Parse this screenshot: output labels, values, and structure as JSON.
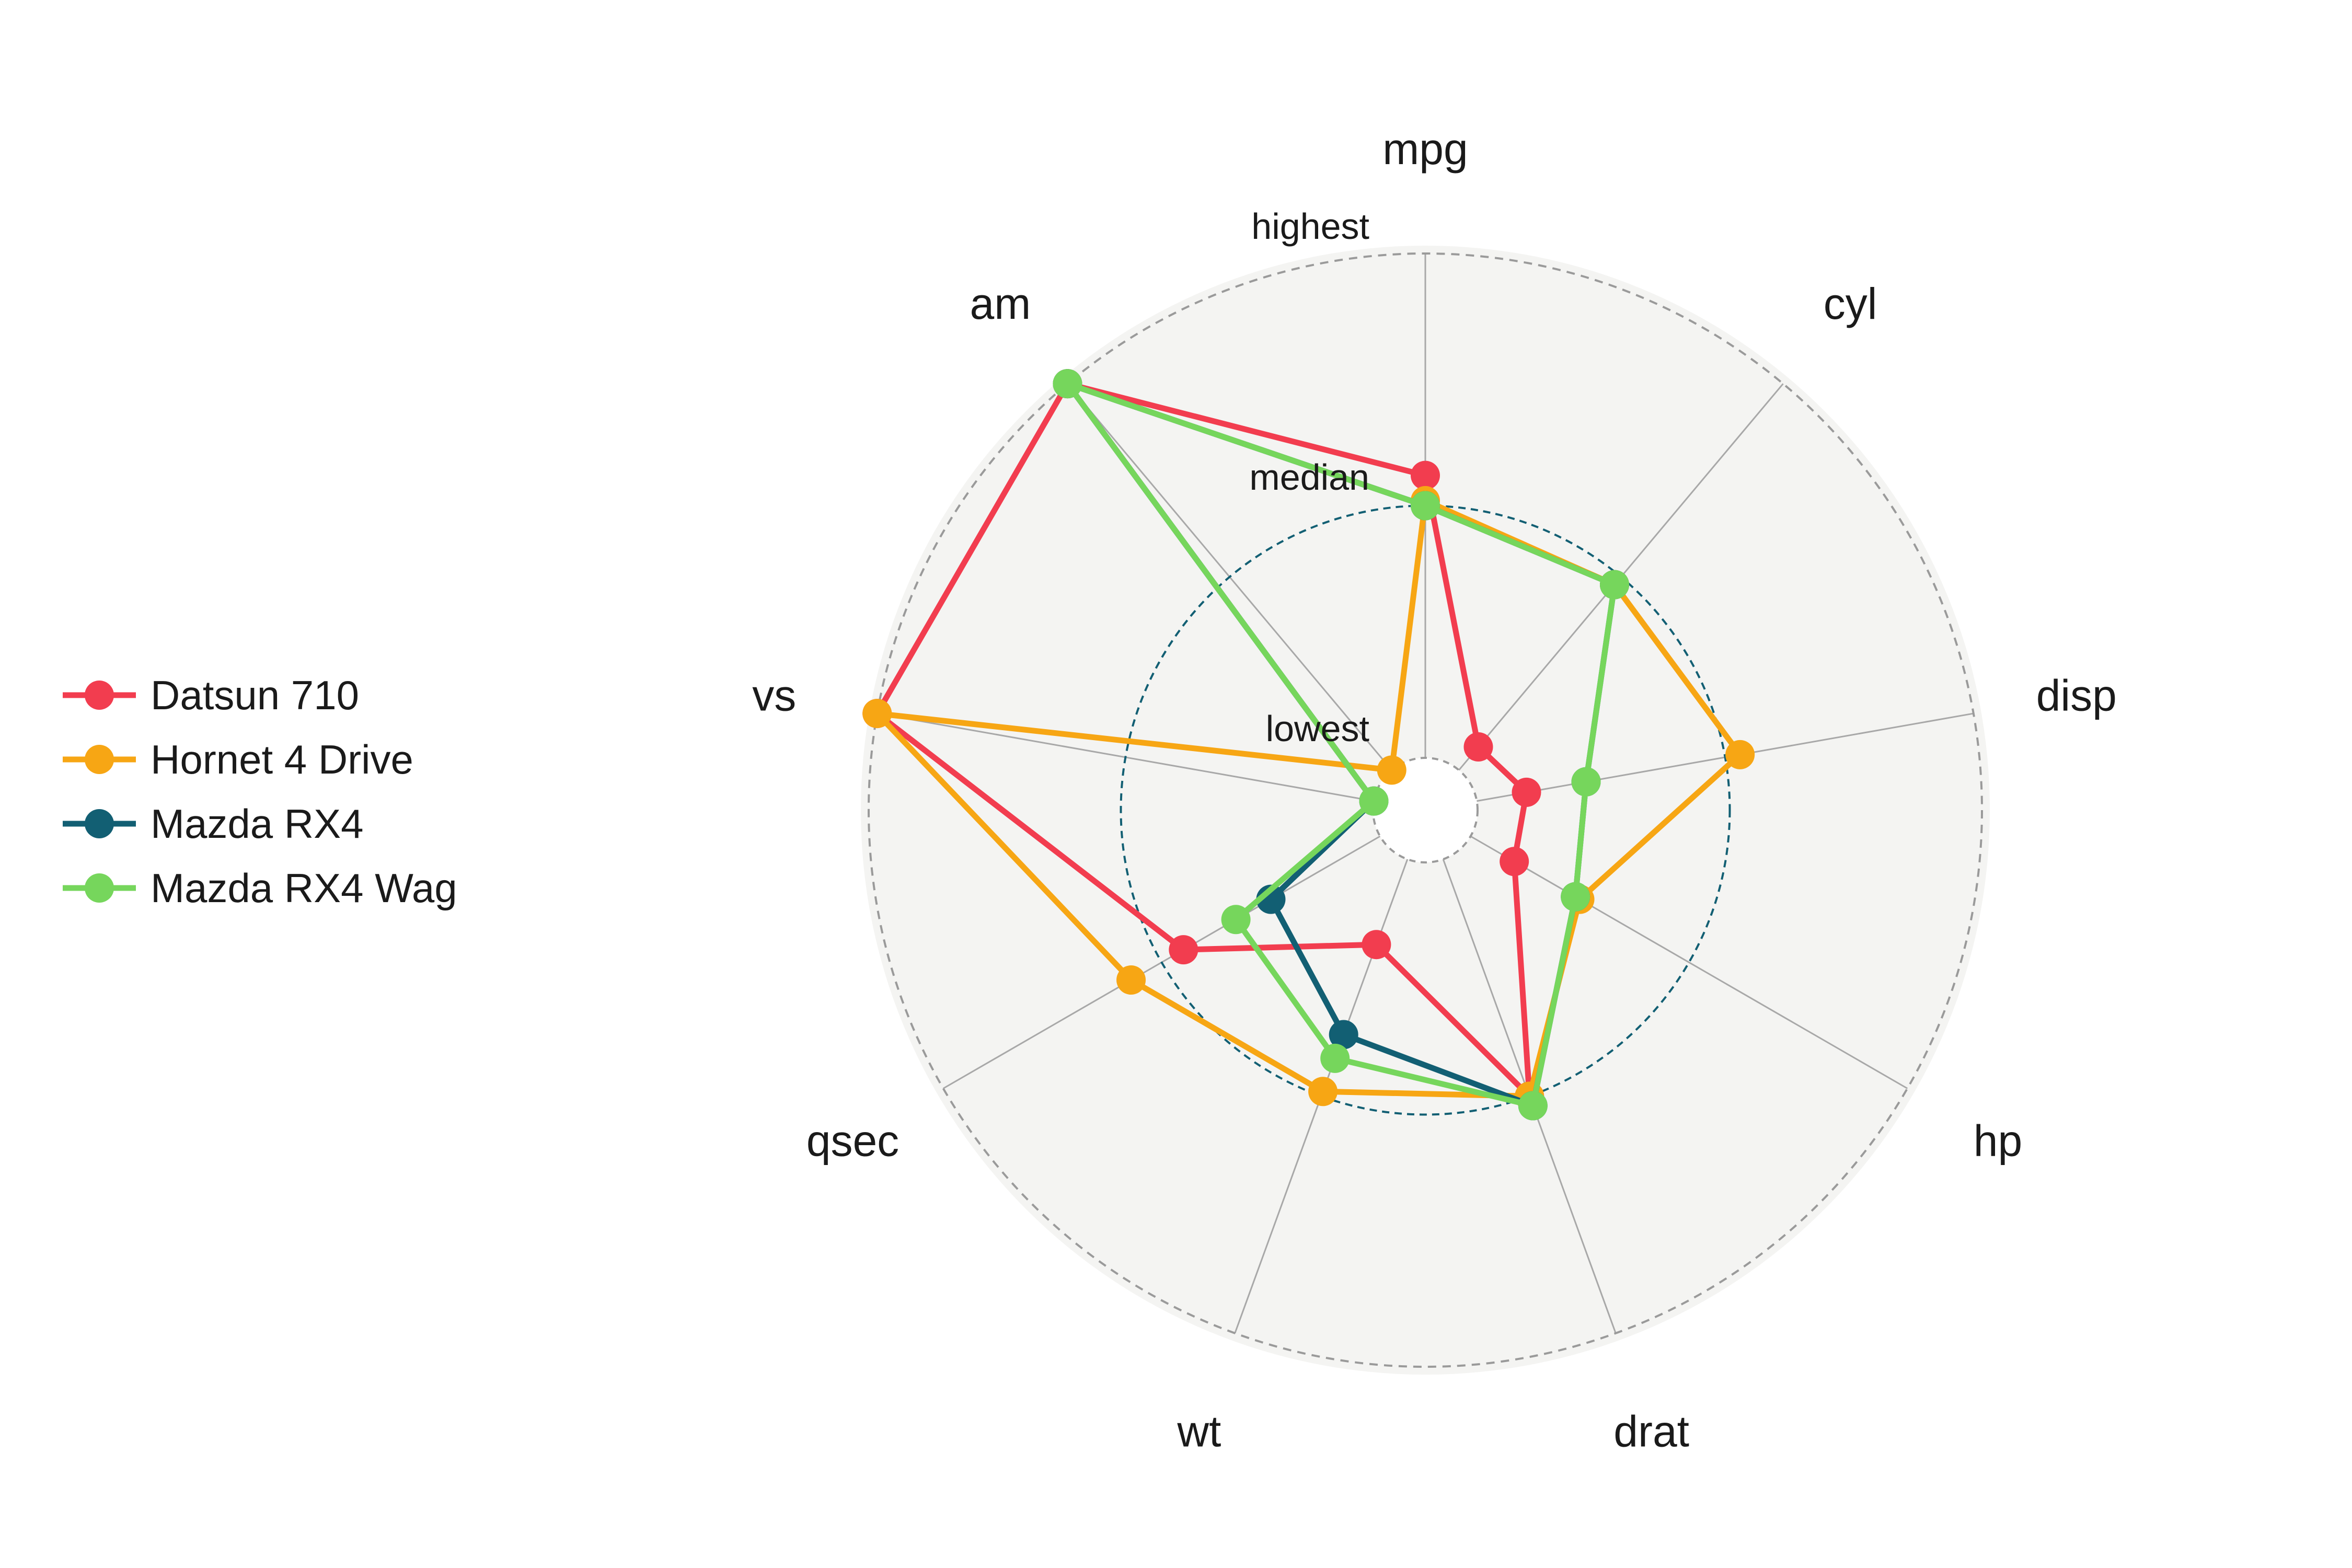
{
  "chart_data": {
    "type": "radar",
    "axes": [
      "mpg",
      "cyl",
      "disp",
      "hp",
      "drat",
      "wt",
      "qsec",
      "vs",
      "am"
    ],
    "ring_labels": {
      "highest": "highest",
      "median": "median",
      "lowest": "lowest"
    },
    "scale": {
      "lowest": 0.0,
      "median": 0.5,
      "highest": 1.0
    },
    "series": [
      {
        "name": "Datsun 710",
        "color": "#f23d4f",
        "values": [
          0.56,
          0.06,
          0.1,
          0.1,
          0.5,
          0.18,
          0.45,
          1.0,
          1.0
        ]
      },
      {
        "name": "Hornet 4 Drive",
        "color": "#f7a614",
        "values": [
          0.51,
          0.48,
          0.53,
          0.25,
          0.5,
          0.49,
          0.57,
          1.0,
          0.0
        ]
      },
      {
        "name": "Mazda RX4",
        "color": "#125f73",
        "values": [
          0.5,
          0.48,
          0.22,
          0.24,
          0.52,
          0.37,
          0.25,
          0.0,
          1.0
        ]
      },
      {
        "name": "Mazda RX4 Wag",
        "color": "#76d65c",
        "values": [
          0.5,
          0.48,
          0.22,
          0.24,
          0.52,
          0.42,
          0.33,
          0.0,
          1.0
        ]
      }
    ],
    "grid": true,
    "legend_position": "left"
  }
}
